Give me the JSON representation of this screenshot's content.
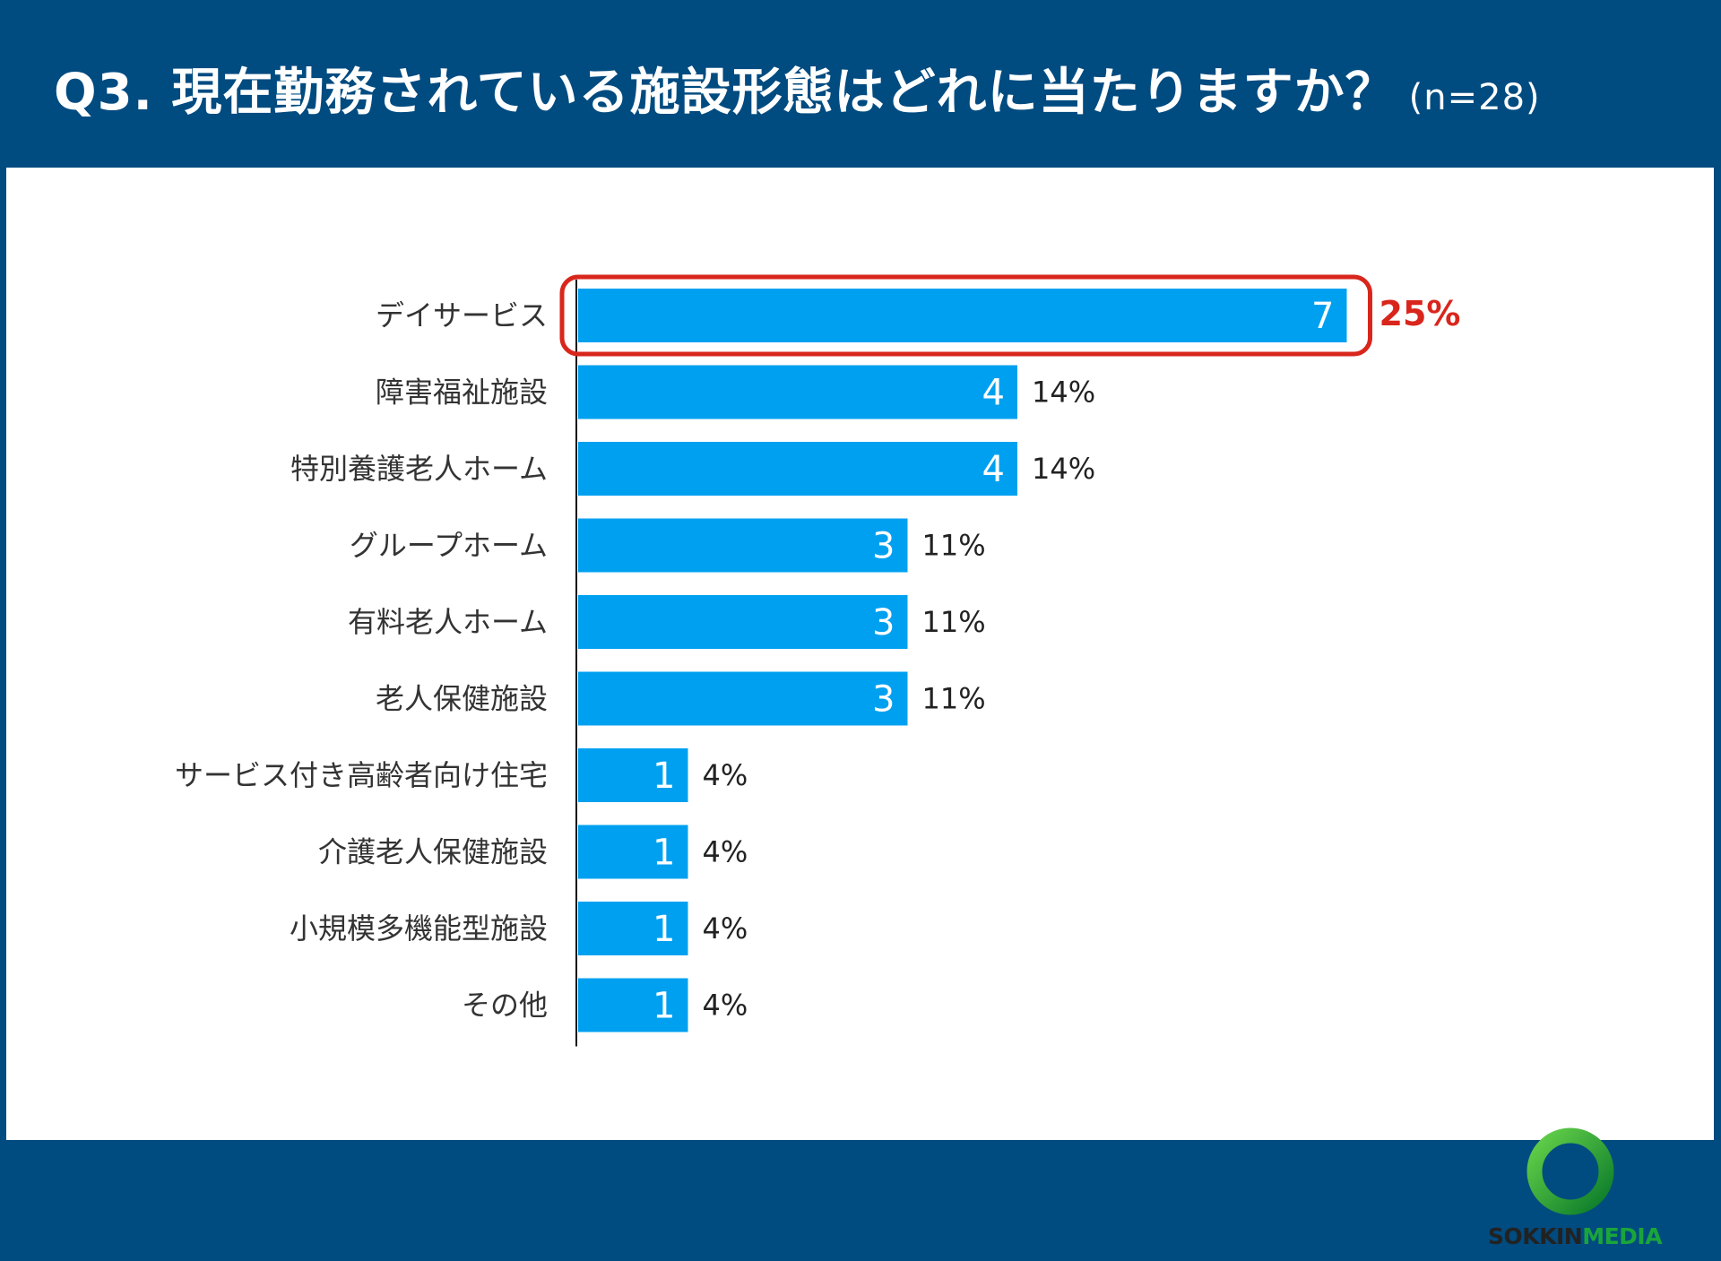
{
  "header": {
    "title": "Q3. 現在勤務されている施設形態はどれに当たりますか？",
    "sample": "(n=28)"
  },
  "chart_data": {
    "type": "bar",
    "orientation": "horizontal",
    "categories": [
      "デイサービス",
      "障害福祉施設",
      "特別養護老人ホーム",
      "グループホーム",
      "有料老人ホーム",
      "老人保健施設",
      "サービス付き高齢者向け住宅",
      "介護老人保健施設",
      "小規模多機能型施設",
      "その他"
    ],
    "values": [
      7,
      4,
      4,
      3,
      3,
      3,
      1,
      1,
      1,
      1
    ],
    "percent_labels": [
      "25%",
      "14%",
      "14%",
      "11%",
      "11%",
      "11%",
      "4%",
      "4%",
      "4%",
      "4%"
    ],
    "highlighted_index": 0,
    "bar_color": "#00a0f0",
    "highlight_color": "#d9261c",
    "xlim": [
      0,
      7
    ],
    "grid": false
  },
  "logo": {
    "text_dark": "SOKKIN",
    "text_green": "MEDIA",
    "ring_color": "#1aa53a"
  }
}
